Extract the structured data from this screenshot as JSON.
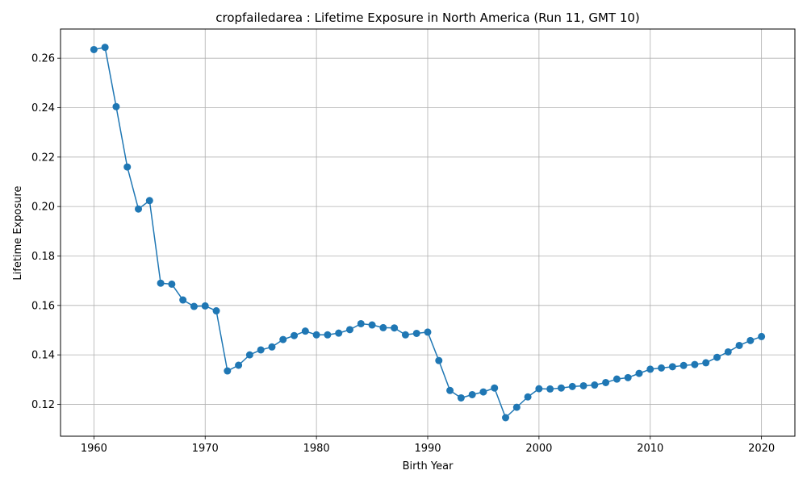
{
  "chart_data": {
    "type": "line",
    "title": "cropfailedarea : Lifetime Exposure in North America (Run 11, GMT 10)",
    "xlabel": "Birth Year",
    "ylabel": "Lifetime Exposure",
    "xlim": [
      1957,
      2023
    ],
    "ylim": [
      0.1071,
      0.2718
    ],
    "xticks": [
      1960,
      1970,
      1980,
      1990,
      2000,
      2010,
      2020
    ],
    "yticks": [
      0.12,
      0.14,
      0.16,
      0.18,
      0.2,
      0.22,
      0.24,
      0.26
    ],
    "ytick_labels": [
      "0.12",
      "0.14",
      "0.16",
      "0.18",
      "0.20",
      "0.22",
      "0.24",
      "0.26"
    ],
    "grid": true,
    "marker": "circle",
    "color": "#1f77b4",
    "series": [
      {
        "x": [
          1960,
          1961,
          1962,
          1963,
          1964,
          1965,
          1966,
          1967,
          1968,
          1969,
          1970,
          1971,
          1972,
          1973,
          1974,
          1975,
          1976,
          1977,
          1978,
          1979,
          1980,
          1981,
          1982,
          1983,
          1984,
          1985,
          1986,
          1987,
          1988,
          1989,
          1990,
          1991,
          1992,
          1993,
          1994,
          1995,
          1996,
          1997,
          1998,
          1999,
          2000,
          2001,
          2002,
          2003,
          2004,
          2005,
          2006,
          2007,
          2008,
          2009,
          2010,
          2011,
          2012,
          2013,
          2014,
          2015,
          2016,
          2017,
          2018,
          2019,
          2020
        ],
        "values": [
          0.2635,
          0.2644,
          0.2404,
          0.216,
          0.199,
          0.2024,
          0.169,
          0.1686,
          0.1622,
          0.1596,
          0.1598,
          0.1578,
          0.1335,
          0.1358,
          0.14,
          0.142,
          0.1432,
          0.1462,
          0.1478,
          0.1496,
          0.1481,
          0.1481,
          0.1488,
          0.1502,
          0.1526,
          0.1521,
          0.151,
          0.1509,
          0.1481,
          0.1487,
          0.1492,
          0.1377,
          0.1256,
          0.1226,
          0.1239,
          0.125,
          0.1266,
          0.1146,
          0.1188,
          0.123,
          0.1263,
          0.1262,
          0.1266,
          0.1272,
          0.1275,
          0.1278,
          0.1288,
          0.1302,
          0.1308,
          0.1325,
          0.1342,
          0.1347,
          0.1352,
          0.1357,
          0.1361,
          0.1368,
          0.139,
          0.1412,
          0.1438,
          0.1458,
          0.1474
        ]
      }
    ]
  }
}
